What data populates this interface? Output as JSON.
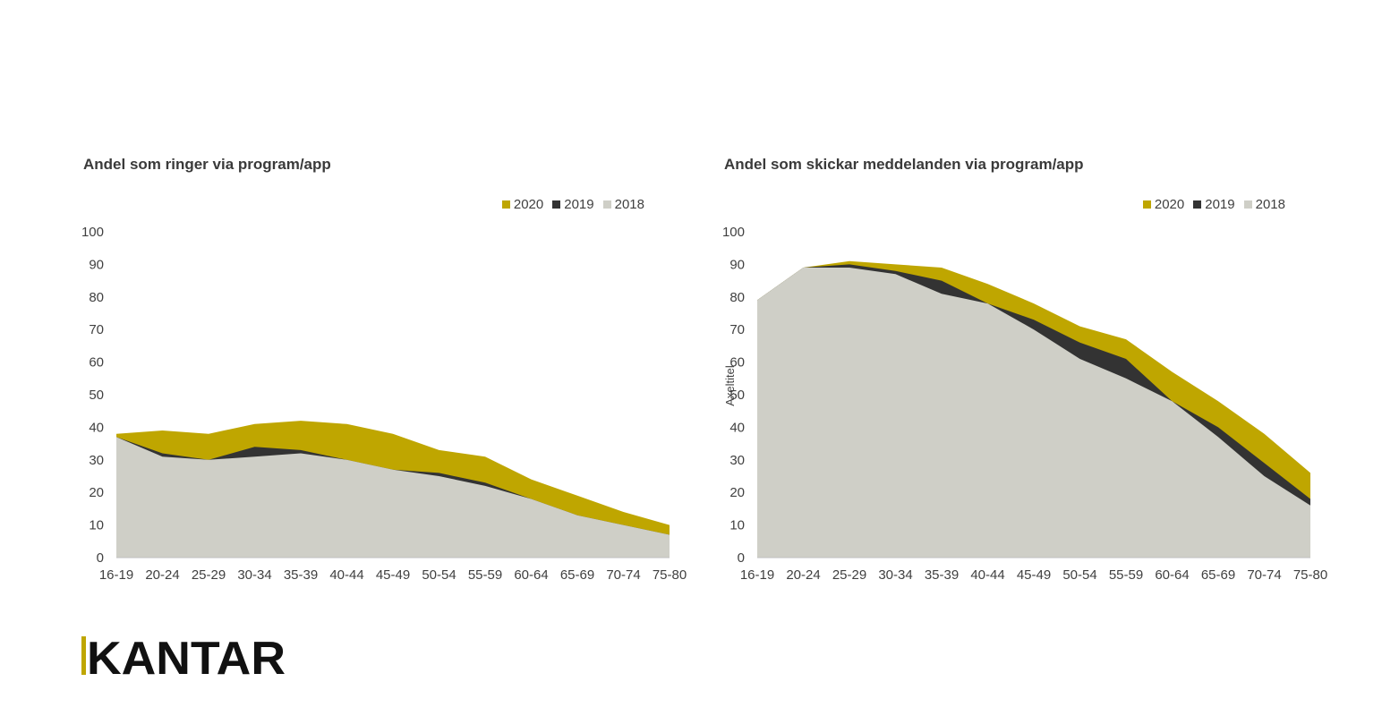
{
  "colors": {
    "2020": "#bfa600",
    "2019": "#333333",
    "2018": "#cfcfc7",
    "axis": "#bfbfbf"
  },
  "chart_data": [
    {
      "type": "area",
      "title": "Andel som ringer via program/app",
      "categories": [
        "16-19",
        "20-24",
        "25-29",
        "30-34",
        "35-39",
        "40-44",
        "45-49",
        "50-54",
        "55-59",
        "60-64",
        "65-69",
        "70-74",
        "75-80"
      ],
      "series": [
        {
          "name": "2020",
          "values": [
            38,
            39,
            38,
            41,
            42,
            41,
            38,
            33,
            31,
            24,
            19,
            14,
            10
          ]
        },
        {
          "name": "2019",
          "values": [
            37,
            32,
            30,
            34,
            33,
            30,
            27,
            26,
            23,
            18,
            13,
            10,
            7
          ]
        },
        {
          "name": "2018",
          "values": [
            37,
            31,
            30,
            31,
            32,
            30,
            27,
            25,
            22,
            18,
            13,
            10,
            7
          ]
        }
      ],
      "ylim": [
        0,
        100
      ],
      "yticks": [
        0,
        10,
        20,
        30,
        40,
        50,
        60,
        70,
        80,
        90,
        100
      ],
      "ylabel": "",
      "legend": "top-right"
    },
    {
      "type": "area",
      "title": "Andel som skickar meddelanden via program/app",
      "categories": [
        "16-19",
        "20-24",
        "25-29",
        "30-34",
        "35-39",
        "40-44",
        "45-49",
        "50-54",
        "55-59",
        "60-64",
        "65-69",
        "70-74",
        "75-80"
      ],
      "series": [
        {
          "name": "2020",
          "values": [
            79,
            89,
            91,
            90,
            89,
            84,
            78,
            71,
            67,
            57,
            48,
            38,
            26
          ]
        },
        {
          "name": "2019",
          "values": [
            79,
            89,
            90,
            88,
            85,
            78,
            73,
            66,
            61,
            48,
            40,
            29,
            18
          ]
        },
        {
          "name": "2018",
          "values": [
            79,
            89,
            89,
            87,
            81,
            78,
            70,
            61,
            55,
            48,
            37,
            25,
            16
          ]
        }
      ],
      "ylim": [
        0,
        100
      ],
      "yticks": [
        0,
        10,
        20,
        30,
        40,
        50,
        60,
        70,
        80,
        90,
        100
      ],
      "ylabel": "Axeltitel",
      "legend": "top-right"
    }
  ],
  "logo": {
    "text": "KANTAR"
  }
}
